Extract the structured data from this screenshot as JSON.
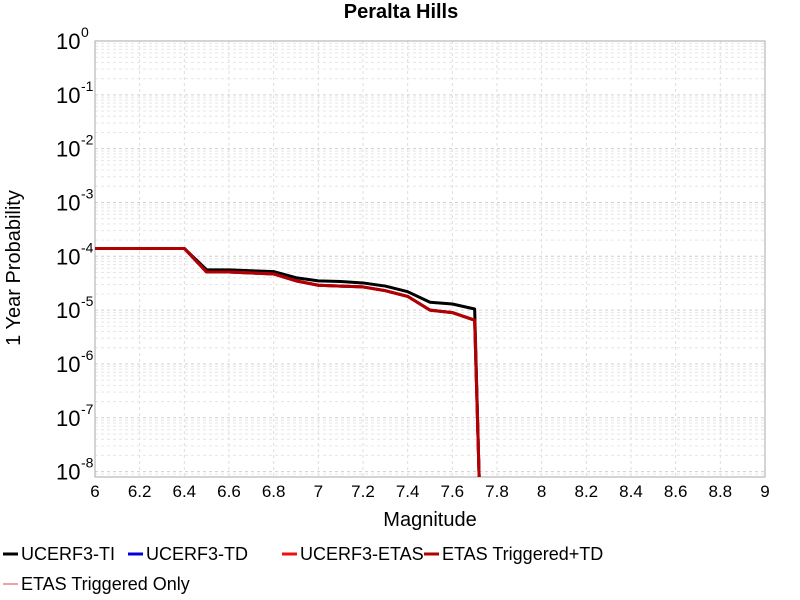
{
  "chart_data": {
    "type": "line",
    "title": "Peralta Hills",
    "xlabel": "Magnitude",
    "ylabel": "1 Year Probability",
    "xlim": [
      6,
      9
    ],
    "ylim_log10": [
      -8.1,
      0
    ],
    "yscale": "log",
    "grid": true,
    "legend_position": "bottom",
    "x_ticks": [
      "6",
      "6.2",
      "6.4",
      "6.6",
      "6.8",
      "7",
      "7.2",
      "7.4",
      "7.6",
      "7.8",
      "8",
      "8.2",
      "8.4",
      "8.6",
      "8.8",
      "9"
    ],
    "y_ticks": [
      {
        "base": "10",
        "exp": "0"
      },
      {
        "base": "10",
        "exp": "-1"
      },
      {
        "base": "10",
        "exp": "-2"
      },
      {
        "base": "10",
        "exp": "-3"
      },
      {
        "base": "10",
        "exp": "-4"
      },
      {
        "base": "10",
        "exp": "-5"
      },
      {
        "base": "10",
        "exp": "-6"
      },
      {
        "base": "10",
        "exp": "-7"
      },
      {
        "base": "10",
        "exp": "-8"
      }
    ],
    "series": [
      {
        "name": "UCERF3-TI",
        "color": "#000000",
        "width": 3,
        "x": [
          6.0,
          6.1,
          6.2,
          6.3,
          6.4,
          6.5,
          6.6,
          6.7,
          6.8,
          6.9,
          7.0,
          7.1,
          7.2,
          7.3,
          7.4,
          7.5,
          7.6,
          7.7,
          7.72
        ],
        "y": [
          0.00014,
          0.00014,
          0.00014,
          0.00014,
          0.00014,
          5.6e-05,
          5.6e-05,
          5.4e-05,
          5.2e-05,
          4e-05,
          3.5e-05,
          3.4e-05,
          3.2e-05,
          2.8e-05,
          2.2e-05,
          1.4e-05,
          1.3e-05,
          1.05e-05,
          1e-09
        ]
      },
      {
        "name": "UCERF3-TD",
        "color": "#0000dd",
        "width": 3,
        "x": [
          6.0,
          6.1,
          6.2,
          6.3,
          6.4,
          6.5,
          6.6,
          6.7,
          6.8,
          6.9,
          7.0,
          7.1,
          7.2,
          7.3,
          7.4,
          7.5,
          7.6,
          7.7,
          7.72
        ],
        "y": [
          0.00014,
          0.00014,
          0.00014,
          0.00014,
          0.00014,
          5.1e-05,
          5.1e-05,
          4.9e-05,
          4.7e-05,
          3.5e-05,
          2.9e-05,
          2.8e-05,
          2.7e-05,
          2.3e-05,
          1.8e-05,
          1e-05,
          9e-06,
          6.5e-06,
          1e-09
        ]
      },
      {
        "name": "UCERF3-ETAS",
        "color": "#ee1111",
        "width": 3,
        "x": [
          6.0,
          6.1,
          6.2,
          6.3,
          6.4,
          6.5,
          6.6,
          6.7,
          6.8,
          6.9,
          7.0,
          7.1,
          7.2,
          7.3,
          7.4,
          7.5,
          7.6,
          7.7,
          7.72
        ],
        "y": [
          0.00014,
          0.00014,
          0.00014,
          0.00014,
          0.00014,
          5.1e-05,
          5.1e-05,
          4.9e-05,
          4.7e-05,
          3.5e-05,
          2.9e-05,
          2.8e-05,
          2.7e-05,
          2.3e-05,
          1.8e-05,
          1e-05,
          9e-06,
          6.5e-06,
          1e-09
        ]
      },
      {
        "name": "ETAS Triggered+TD",
        "color": "#b00000",
        "width": 3,
        "x": [
          6.0,
          6.1,
          6.2,
          6.3,
          6.4,
          6.5,
          6.6,
          6.7,
          6.8,
          6.9,
          7.0,
          7.1,
          7.2,
          7.3,
          7.4,
          7.5,
          7.6,
          7.7,
          7.72
        ],
        "y": [
          0.00014,
          0.00014,
          0.00014,
          0.00014,
          0.00014,
          5.1e-05,
          5.1e-05,
          4.9e-05,
          4.7e-05,
          3.5e-05,
          2.9e-05,
          2.8e-05,
          2.7e-05,
          2.3e-05,
          1.8e-05,
          1e-05,
          9e-06,
          6.5e-06,
          1e-09
        ]
      },
      {
        "name": "ETAS Triggered Only",
        "color": "#f08080",
        "width": 1.5,
        "x": [],
        "y": []
      }
    ]
  }
}
